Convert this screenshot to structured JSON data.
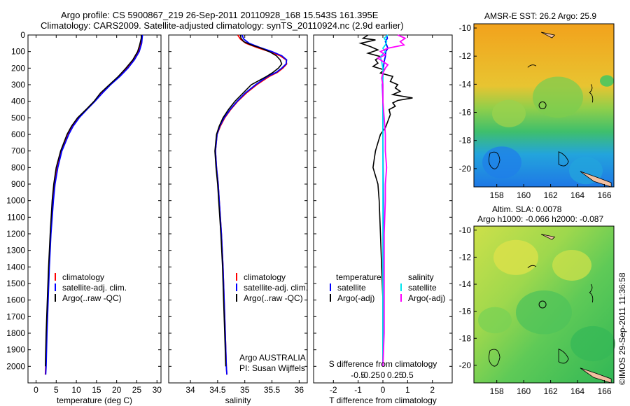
{
  "header": {
    "line1": "Argo profile: CS 5900867_219 26-Sep-2011 20110928_168 15.543S 161.395E",
    "line2": "Climatology: CARS2009. Satellite-adjusted climatology: synTS_20110924.nc (2.9d earlier)"
  },
  "colors": {
    "climatology": "#ff0000",
    "satellite": "#0000ff",
    "argo": "#000000",
    "cyan": "#00e5ee",
    "magenta": "#ff00ff"
  },
  "chart_data": [
    {
      "type": "line",
      "id": "temperature",
      "xlabel": "temperature (deg C)",
      "ylabel": "",
      "xlim": [
        -2,
        31
      ],
      "ylim": [
        2100,
        0
      ],
      "xticks": [
        0,
        5,
        10,
        15,
        20,
        25,
        30
      ],
      "yticks": [
        0,
        100,
        200,
        300,
        400,
        500,
        600,
        700,
        800,
        900,
        1000,
        1100,
        1200,
        1300,
        1400,
        1500,
        1600,
        1700,
        1800,
        1900,
        2000
      ],
      "legend": [
        "climatology",
        "satellite-adj. clim.",
        "Argo(..raw -QC)"
      ],
      "series": [
        {
          "name": "climatology",
          "color": "#ff0000",
          "depth": [
            0,
            50,
            100,
            150,
            200,
            250,
            300,
            350,
            400,
            450,
            500,
            550,
            600,
            700,
            800,
            900,
            1000,
            1200,
            1400,
            1600,
            1800,
            2000,
            2050
          ],
          "values": [
            26.2,
            26.0,
            25.4,
            24.2,
            22.6,
            20.6,
            18.4,
            16.4,
            14.5,
            12.5,
            10.6,
            9.1,
            8.0,
            6.3,
            5.3,
            4.6,
            4.2,
            3.6,
            3.2,
            2.9,
            2.6,
            2.4,
            2.3
          ]
        },
        {
          "name": "satellite-adj. clim.",
          "color": "#0000ff",
          "depth": [
            0,
            50,
            100,
            150,
            200,
            250,
            300,
            350,
            400,
            450,
            500,
            550,
            600,
            700,
            800,
            900,
            1000,
            1200,
            1400,
            1600,
            1800,
            2000,
            2050
          ],
          "values": [
            26.4,
            26.2,
            25.6,
            24.4,
            22.8,
            20.8,
            18.5,
            16.5,
            14.6,
            12.6,
            10.7,
            9.2,
            8.1,
            6.4,
            5.4,
            4.7,
            4.3,
            3.7,
            3.3,
            3.0,
            2.7,
            2.5,
            2.4
          ]
        },
        {
          "name": "Argo(..raw -QC)",
          "color": "#000000",
          "depth": [
            0,
            20,
            60,
            100,
            150,
            200,
            250,
            300,
            350,
            400,
            450,
            500,
            550,
            600,
            700,
            800,
            900,
            1000,
            1200,
            1400,
            1600,
            1800,
            2000
          ],
          "values": [
            26.1,
            26.1,
            25.7,
            25.2,
            24.0,
            22.3,
            20.4,
            18.2,
            16.0,
            14.4,
            12.4,
            10.3,
            8.8,
            7.7,
            6.1,
            5.0,
            4.4,
            4.0,
            3.5,
            3.1,
            2.8,
            2.5,
            2.3
          ]
        }
      ]
    },
    {
      "type": "line",
      "id": "salinity",
      "xlabel": "salinity",
      "ylabel": "",
      "xlim": [
        33.6,
        36.15
      ],
      "ylim": [
        2100,
        0
      ],
      "xticks": [
        34,
        34.5,
        35,
        35.5,
        36
      ],
      "xticklabels": [
        "34",
        "34.5",
        "35",
        "35.5",
        "36"
      ],
      "legend": [
        "climatology",
        "satellite-adj. clim.",
        "Argo(..raw -QC)"
      ],
      "annotation": [
        "Argo AUSTRALIA",
        "PI: Susan Wijffels"
      ],
      "series": [
        {
          "name": "climatology",
          "color": "#ff0000",
          "depth": [
            0,
            25,
            50,
            75,
            100,
            125,
            150,
            175,
            200,
            225,
            250,
            300,
            350,
            400,
            450,
            500,
            550,
            600,
            700,
            800,
            900,
            1000,
            1200,
            1400,
            1600,
            1800,
            2000,
            2050
          ],
          "values": [
            34.87,
            34.92,
            35.02,
            35.22,
            35.45,
            35.65,
            35.76,
            35.77,
            35.7,
            35.6,
            35.45,
            35.22,
            35.03,
            34.87,
            34.74,
            34.63,
            34.55,
            34.49,
            34.46,
            34.48,
            34.51,
            34.53,
            34.57,
            34.6,
            34.62,
            34.64,
            34.66,
            34.67
          ]
        },
        {
          "name": "satellite-adj. clim.",
          "color": "#0000ff",
          "depth": [
            0,
            25,
            50,
            75,
            100,
            125,
            150,
            175,
            200,
            225,
            250,
            300,
            350,
            400,
            450,
            500,
            550,
            600,
            700,
            800,
            900,
            1000,
            1200,
            1400,
            1600,
            1800,
            2000,
            2050
          ],
          "values": [
            34.95,
            34.98,
            35.08,
            35.28,
            35.5,
            35.68,
            35.77,
            35.76,
            35.68,
            35.58,
            35.42,
            35.2,
            35.01,
            34.86,
            34.73,
            34.62,
            34.54,
            34.49,
            34.46,
            34.48,
            34.51,
            34.53,
            34.57,
            34.6,
            34.62,
            34.64,
            34.66,
            34.67
          ]
        },
        {
          "name": "Argo(..raw -QC)",
          "color": "#000000",
          "depth": [
            0,
            20,
            40,
            60,
            80,
            100,
            125,
            150,
            175,
            200,
            225,
            250,
            300,
            350,
            400,
            450,
            500,
            550,
            600,
            700,
            800,
            900,
            1000,
            1200,
            1400,
            1600,
            1800,
            2000
          ],
          "values": [
            34.92,
            34.93,
            34.98,
            35.12,
            35.3,
            35.45,
            35.58,
            35.65,
            35.68,
            35.62,
            35.52,
            35.4,
            35.12,
            34.97,
            34.82,
            34.7,
            34.6,
            34.53,
            34.48,
            34.45,
            34.47,
            34.5,
            34.52,
            34.56,
            34.59,
            34.61,
            34.63,
            34.65
          ]
        }
      ]
    },
    {
      "type": "line",
      "id": "difference",
      "xlabel": "T difference from climatology",
      "top_axis_label": "S difference from climatology",
      "xlim": [
        -2.8,
        2.8
      ],
      "ylim": [
        2100,
        0
      ],
      "xticks": [
        -2,
        -1,
        0,
        1,
        2
      ],
      "top_ticklabels": [
        "-0.5",
        "-0.25",
        "0",
        "0.25",
        "0.5"
      ],
      "legend_titles": [
        "temperature",
        "salinity"
      ],
      "legend_left": [
        "satellite",
        "Argo(-adj)"
      ],
      "legend_right": [
        "satellite",
        "Argo(-adj)"
      ],
      "series": [
        {
          "name": "temperature satellite",
          "color": "#0000ff",
          "depth": [
            0,
            20,
            40,
            60,
            80,
            100,
            130,
            160,
            200,
            250,
            300,
            400,
            600,
            1000,
            1500,
            2000
          ],
          "values": [
            0.15,
            0.18,
            0.1,
            0.15,
            0.2,
            0.12,
            0.1,
            0.05,
            0.02,
            0.0,
            -0.02,
            0.0,
            0.0,
            0.02,
            0.0,
            0.0
          ]
        },
        {
          "name": "temperature Argo(-adj)",
          "color": "#000000",
          "depth": [
            0,
            20,
            30,
            50,
            70,
            90,
            110,
            130,
            150,
            170,
            190,
            210,
            230,
            250,
            280,
            300,
            320,
            340,
            360,
            380,
            395,
            410,
            430,
            450,
            480,
            520,
            560,
            600,
            650,
            700,
            750,
            800,
            900,
            1000,
            1200,
            1400,
            1600,
            1800,
            2000
          ],
          "values": [
            -0.6,
            -0.8,
            -0.3,
            -0.9,
            -0.5,
            -0.2,
            -0.6,
            -0.1,
            -0.3,
            -0.2,
            -0.4,
            0.05,
            -0.1,
            0.4,
            0.3,
            0.6,
            0.5,
            0.7,
            0.4,
            1.2,
            0.6,
            0.4,
            0.5,
            0.25,
            0.3,
            0.2,
            0.1,
            -0.1,
            -0.2,
            -0.3,
            -0.35,
            -0.4,
            -0.2,
            -0.15,
            -0.1,
            -0.05,
            0.0,
            0.0,
            0.0
          ]
        },
        {
          "name": "salinity satellite",
          "color": "#00e5ee",
          "depth": [
            0,
            20,
            40,
            60,
            80,
            100,
            130,
            160,
            200,
            250,
            300,
            400,
            600,
            1000,
            1500,
            2000
          ],
          "values": [
            0.2,
            0.05,
            0.15,
            0.1,
            0.0,
            0.1,
            -0.1,
            -0.05,
            0.0,
            0.0,
            0.0,
            0.0,
            0.0,
            0.0,
            0.0,
            0.0
          ]
        },
        {
          "name": "salinity Argo(-adj)",
          "color": "#ff00ff",
          "depth": [
            0,
            20,
            40,
            60,
            80,
            100,
            120,
            140,
            160,
            180,
            200,
            230,
            260,
            300,
            400,
            500,
            600,
            700,
            800,
            900,
            1000,
            1200,
            1400,
            1600,
            1800,
            2000
          ],
          "values": [
            0.6,
            0.9,
            0.7,
            0.85,
            0.2,
            -0.1,
            0.1,
            -0.2,
            0.0,
            0.2,
            0.1,
            0.0,
            -0.05,
            0.0,
            0.0,
            0.05,
            0.1,
            0.1,
            0.15,
            0.1,
            0.1,
            0.05,
            0.05,
            0.05,
            0.05,
            0.0
          ]
        }
      ]
    },
    {
      "type": "heatmap",
      "id": "sst_map",
      "title": "AMSR-E SST: 26.2 Argo: 25.9",
      "xticks": [
        158,
        160,
        162,
        164,
        166
      ],
      "yticks": [
        -10,
        -12,
        -14,
        -16,
        -18,
        -20
      ],
      "xlim": [
        156.3,
        166.7
      ],
      "ylim": [
        -21.3,
        -9.7
      ],
      "marker": {
        "lon": 161.4,
        "lat": -15.5
      }
    },
    {
      "type": "heatmap",
      "id": "sla_map",
      "title": "Altim. SLA: 0.0078",
      "subtitle": "Argo h1000: -0.066 h2000: -0.087",
      "xticks": [
        158,
        160,
        162,
        164,
        166
      ],
      "yticks": [
        -10,
        -12,
        -14,
        -16,
        -18,
        -20
      ],
      "xlim": [
        156.3,
        166.7
      ],
      "ylim": [
        -21.3,
        -9.7
      ],
      "marker": {
        "lon": 161.4,
        "lat": -15.5
      }
    }
  ],
  "footer": {
    "credit": "©IMOS 29-Sep-2011 11:36:58"
  }
}
